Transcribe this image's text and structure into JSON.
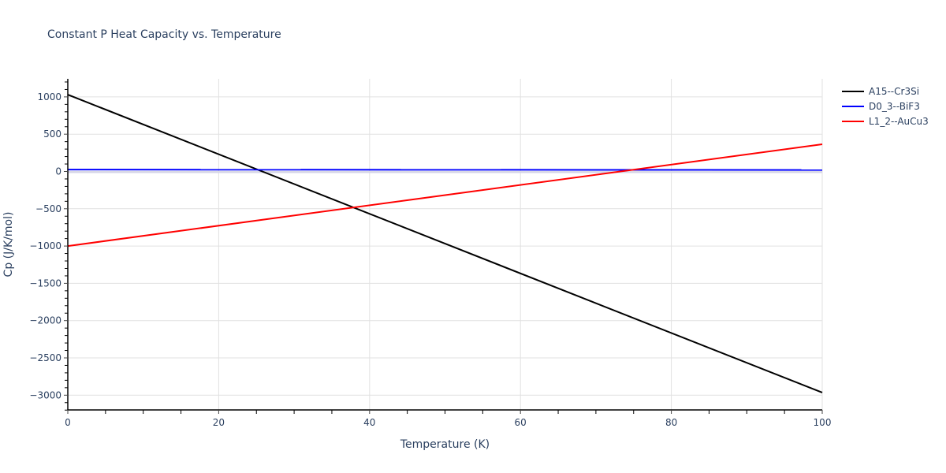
{
  "chart_data": {
    "type": "line",
    "title": "Constant P Heat Capacity vs. Temperature",
    "xlabel": "Temperature (K)",
    "ylabel": "Cp (J/K/mol)",
    "xlim": [
      0,
      100
    ],
    "ylim": [
      -3200,
      1250
    ],
    "x_ticks": [
      0,
      20,
      40,
      60,
      80,
      100
    ],
    "y_ticks": [
      1000,
      500,
      0,
      -500,
      -1000,
      -1500,
      -2000,
      -2500,
      -3000
    ],
    "y_tick_labels": [
      "1000",
      "500",
      "0",
      "−500",
      "−1000",
      "−1500",
      "−2000",
      "−2500",
      "−3000"
    ],
    "grid": true,
    "legend_position": "right",
    "x": [
      0,
      100
    ],
    "series": [
      {
        "name": "A15--Cr3Si",
        "color": "#000000",
        "values": [
          1030,
          -2965
        ]
      },
      {
        "name": "D0_3--BiF3",
        "color": "#0000ff",
        "values": [
          25,
          20
        ]
      },
      {
        "name": "L1_2--AuCu3",
        "color": "#ff0000",
        "values": [
          -1000,
          365
        ]
      }
    ]
  },
  "legend": {
    "items": [
      {
        "label": "A15--Cr3Si",
        "color": "#000000"
      },
      {
        "label": "D0_3--BiF3",
        "color": "#0000ff"
      },
      {
        "label": "L1_2--AuCu3",
        "color": "#ff0000"
      }
    ]
  }
}
